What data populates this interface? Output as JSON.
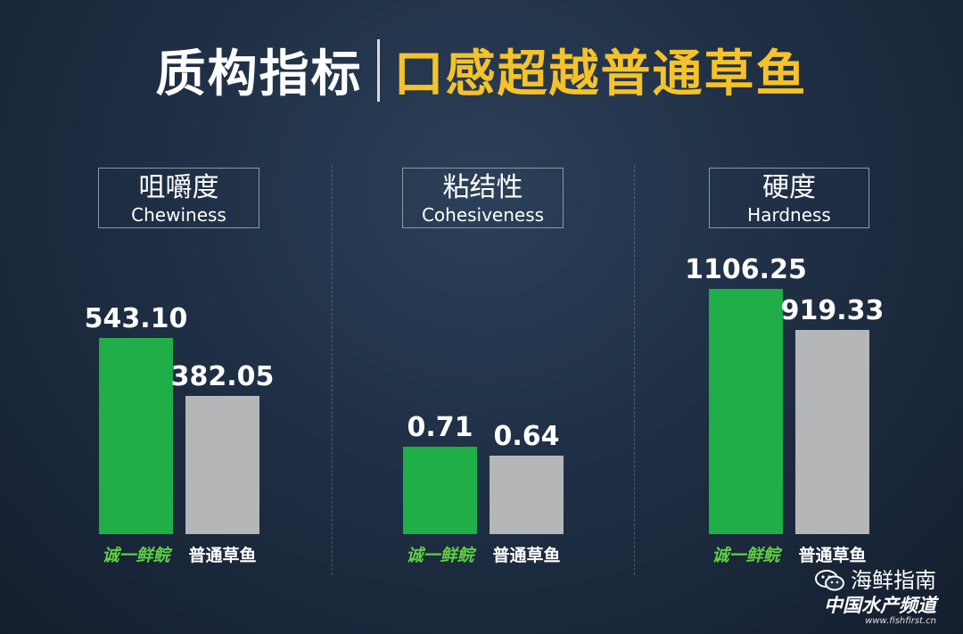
{
  "title": {
    "left": "质构指标",
    "right": "口感超越普通草鱼"
  },
  "colors": {
    "brand_bar": "#1fae48",
    "compare_bar": "#b4b6b8",
    "title_accent": "#f6c22a"
  },
  "chart_data": [
    {
      "type": "bar",
      "title": "咀嚼度",
      "subtitle": "Chewiness",
      "categories": [
        "诚一鲜鲩",
        "普通草鱼"
      ],
      "values": [
        543.1,
        382.05
      ],
      "value_labels": [
        "543.10",
        "382.05"
      ],
      "ylim": [
        0,
        600
      ]
    },
    {
      "type": "bar",
      "title": "粘结性",
      "subtitle": "Cohesiveness",
      "categories": [
        "诚一鲜鲩",
        "普通草鱼"
      ],
      "values": [
        0.71,
        0.64
      ],
      "value_labels": [
        "0.71",
        "0.64"
      ],
      "ylim": [
        0,
        0.71
      ]
    },
    {
      "type": "bar",
      "title": "硬度",
      "subtitle": "Hardness",
      "categories": [
        "诚一鲜鲩",
        "普通草鱼"
      ],
      "values": [
        1106.25,
        919.33
      ],
      "value_labels": [
        "1106.25",
        "919.33"
      ],
      "ylim": [
        0,
        1106.25
      ]
    }
  ],
  "watermark": {
    "name": "海鲜指南",
    "org": "中国水产频道",
    "url": "www.fishfirst.cn"
  }
}
